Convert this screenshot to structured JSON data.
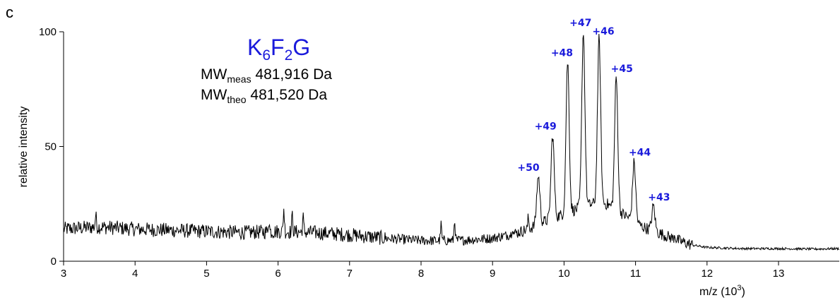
{
  "panel_label": "c",
  "colors": {
    "accent": "#1a1adb",
    "trace": "#000000",
    "axis": "#000000"
  },
  "chart_data": {
    "type": "line",
    "title": "",
    "xlabel_main": "m/z (10",
    "xlabel_sup": "3",
    "xlabel_end": ")",
    "ylabel": "relative intensity",
    "xlim": [
      3.0,
      13.85
    ],
    "ylim": [
      0,
      100
    ],
    "xticks": [
      "3",
      "4",
      "5",
      "6",
      "7",
      "8",
      "9",
      "10",
      "11",
      "12",
      "13"
    ],
    "yticks": [
      "0",
      "50",
      "100"
    ],
    "grid": false,
    "annotation": {
      "main": {
        "a": "K",
        "b": "6",
        "c": "F",
        "d": "2",
        "e": "G"
      },
      "meas": {
        "base": "MW",
        "sub": "meas",
        "value": " 481,916 Da"
      },
      "theo": {
        "base": "MW",
        "sub": "theo",
        "value": "  481,520 Da"
      }
    },
    "peaks": [
      {
        "label": "+50",
        "mz": 9.64,
        "y": 37
      },
      {
        "label": "+49",
        "mz": 9.84,
        "y": 55
      },
      {
        "label": "+48",
        "mz": 10.05,
        "y": 87
      },
      {
        "label": "+47",
        "mz": 10.27,
        "y": 100
      },
      {
        "label": "+46",
        "mz": 10.49,
        "y": 97
      },
      {
        "label": "+45",
        "mz": 10.73,
        "y": 80
      },
      {
        "label": "+44",
        "mz": 10.98,
        "y": 43
      },
      {
        "label": "+43",
        "mz": 11.25,
        "y": 24
      }
    ],
    "baseline_points": [
      [
        3.0,
        14
      ],
      [
        3.5,
        15
      ],
      [
        4.0,
        14
      ],
      [
        4.5,
        13.5
      ],
      [
        5.0,
        13
      ],
      [
        5.5,
        12.5
      ],
      [
        6.0,
        13
      ],
      [
        6.5,
        12.5
      ],
      [
        7.0,
        11.5
      ],
      [
        7.5,
        10
      ],
      [
        8.0,
        9
      ],
      [
        8.5,
        9
      ],
      [
        9.0,
        10
      ],
      [
        9.3,
        12
      ],
      [
        9.5,
        14
      ],
      [
        9.7,
        17
      ],
      [
        9.95,
        20
      ],
      [
        10.2,
        23
      ],
      [
        10.4,
        25
      ],
      [
        10.6,
        25
      ],
      [
        10.85,
        20
      ],
      [
        11.1,
        15
      ],
      [
        11.35,
        12
      ],
      [
        11.6,
        9
      ],
      [
        11.8,
        7
      ],
      [
        12.0,
        6
      ],
      [
        12.5,
        5.5
      ],
      [
        13.0,
        5.5
      ],
      [
        13.5,
        5.3
      ],
      [
        13.85,
        5.5
      ]
    ],
    "spikes": [
      [
        6.08,
        23
      ],
      [
        6.2,
        20
      ],
      [
        6.35,
        19
      ],
      [
        5.87,
        18
      ],
      [
        3.45,
        20
      ],
      [
        8.28,
        16
      ],
      [
        8.47,
        18
      ],
      [
        9.28,
        15
      ],
      [
        9.5,
        19
      ],
      [
        11.55,
        12
      ]
    ]
  }
}
